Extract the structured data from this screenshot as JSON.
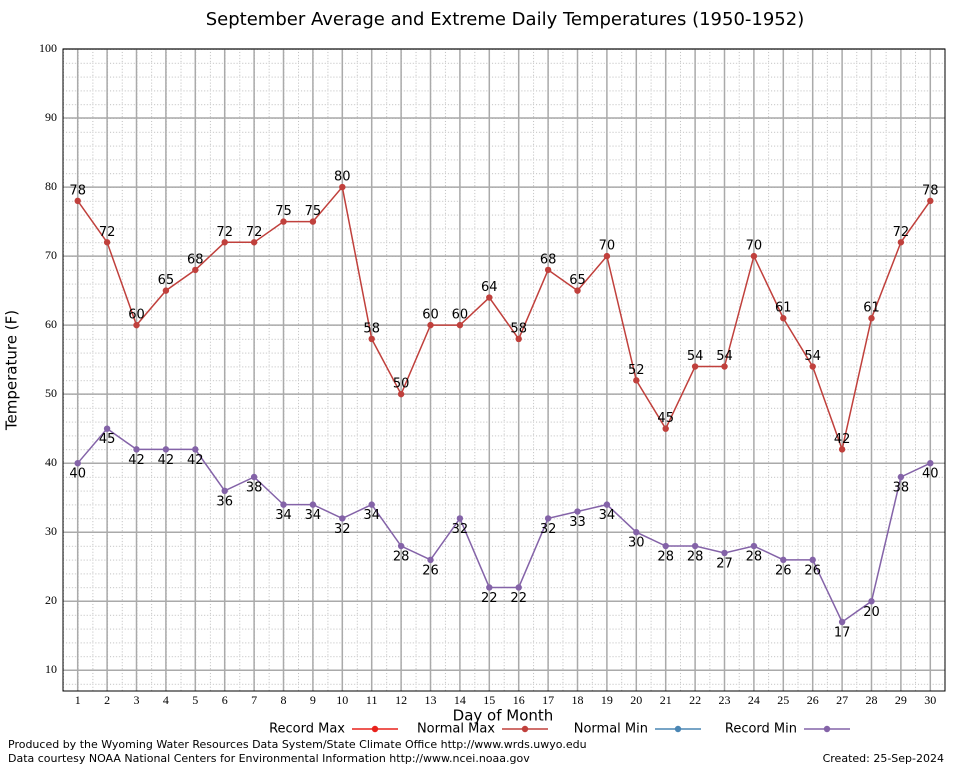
{
  "chart_data": {
    "type": "line",
    "title": "September Average and Extreme Daily Temperatures (1950-1952)",
    "x_label": "Day of Month",
    "y_label": "Temperature (F)",
    "x": [
      1,
      2,
      3,
      4,
      5,
      6,
      7,
      8,
      9,
      10,
      11,
      12,
      13,
      14,
      15,
      16,
      17,
      18,
      19,
      20,
      21,
      22,
      23,
      24,
      25,
      26,
      27,
      28,
      29,
      30
    ],
    "series": [
      {
        "name": "Record Max",
        "color": "#e8221c",
        "values": [
          null,
          null,
          null,
          null,
          null,
          null,
          null,
          null,
          null,
          null,
          null,
          null,
          null,
          null,
          null,
          null,
          null,
          null,
          null,
          null,
          null,
          null,
          null,
          null,
          null,
          null,
          null,
          null,
          null,
          null
        ]
      },
      {
        "name": "Normal Max",
        "color": "#c0403c",
        "values": [
          78,
          72,
          60,
          65,
          68,
          72,
          72,
          75,
          75,
          80,
          58,
          50,
          60,
          60,
          64,
          58,
          68,
          65,
          70,
          52,
          45,
          54,
          54,
          70,
          61,
          54,
          42,
          61,
          72,
          78
        ],
        "label_side": "above"
      },
      {
        "name": "Normal Min",
        "color": "#4a86b4",
        "values": [
          null,
          null,
          null,
          null,
          null,
          null,
          null,
          null,
          null,
          null,
          null,
          null,
          null,
          null,
          null,
          null,
          null,
          null,
          null,
          null,
          null,
          null,
          null,
          null,
          null,
          null,
          null,
          null,
          null,
          null
        ]
      },
      {
        "name": "Record Min",
        "color": "#8463a8",
        "values": [
          40,
          45,
          42,
          42,
          42,
          36,
          38,
          34,
          34,
          32,
          34,
          28,
          26,
          32,
          22,
          22,
          32,
          33,
          34,
          30,
          28,
          28,
          27,
          28,
          26,
          26,
          17,
          20,
          38,
          40
        ],
        "label_side": "below"
      }
    ],
    "xlim": [
      0.5,
      30.5
    ],
    "xticks": [
      1,
      2,
      3,
      4,
      5,
      6,
      7,
      8,
      9,
      10,
      11,
      12,
      13,
      14,
      15,
      16,
      17,
      18,
      19,
      20,
      21,
      22,
      23,
      24,
      25,
      26,
      27,
      28,
      29,
      30
    ],
    "ylim": [
      7,
      100
    ],
    "yticks": [
      10,
      20,
      30,
      40,
      50,
      60,
      70,
      80,
      90,
      100
    ],
    "grid": true,
    "footer_left": [
      "Produced by the Wyoming Water Resources Data System/State Climate Office http://www.wrds.uwyo.edu",
      "Data courtesy NOAA National Centers for Environmental Information http://www.ncei.noaa.gov"
    ],
    "footer_right": "Created: 25-Sep-2024"
  }
}
